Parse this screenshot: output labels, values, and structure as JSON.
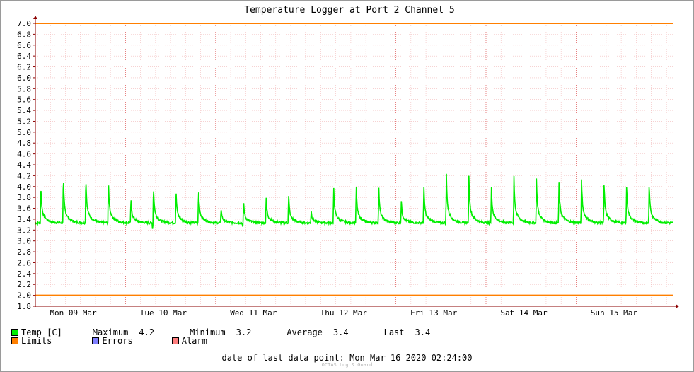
{
  "colors": {
    "temp": "#00ee00",
    "limits": "#ff7f00",
    "errors": "#7f7fff",
    "alarm": "#ff7f7f",
    "grid_minor": "#f2b8b8",
    "grid_major": "#e06060",
    "axis": "#8b0000"
  },
  "chart_data": {
    "type": "line",
    "title": "Temperature Logger at Port 2 Channel 5",
    "xlabel": "",
    "ylabel": "",
    "ylim": [
      1.8,
      7.0
    ],
    "y_ticks": [
      "1.8",
      "2.0",
      "2.2",
      "2.4",
      "2.6",
      "2.8",
      "3.0",
      "3.2",
      "3.4",
      "3.6",
      "3.8",
      "4.0",
      "4.2",
      "4.4",
      "4.6",
      "4.8",
      "5.0",
      "5.2",
      "5.4",
      "5.6",
      "5.8",
      "6.0",
      "6.2",
      "6.4",
      "6.6",
      "6.8",
      "7.0"
    ],
    "x_tick_labels": [
      "Mon 09 Mar",
      "Tue 10 Mar",
      "Wed 11 Mar",
      "Thu 12 Mar",
      "Fri 13 Mar",
      "Sat 14 Mar",
      "Sun 15 Mar"
    ],
    "x_range_days": [
      0,
      7.08
    ],
    "limits": {
      "upper": 7.0,
      "lower": 2.0
    },
    "grid": true,
    "series": [
      {
        "name": "Temp [C]",
        "baseline": 3.33,
        "peaks": [
          [
            0.06,
            4.07
          ],
          [
            0.31,
            4.2
          ],
          [
            0.56,
            4.21
          ],
          [
            0.81,
            4.13
          ],
          [
            1.06,
            3.8
          ],
          [
            1.31,
            4.02
          ],
          [
            1.56,
            3.96
          ],
          [
            1.81,
            3.97
          ],
          [
            2.06,
            3.61
          ],
          [
            2.31,
            3.74
          ],
          [
            2.56,
            3.83
          ],
          [
            2.81,
            3.87
          ],
          [
            3.06,
            3.57
          ],
          [
            3.31,
            4.01
          ],
          [
            3.56,
            4.02
          ],
          [
            3.81,
            4.01
          ],
          [
            4.06,
            3.75
          ],
          [
            4.31,
            4.01
          ],
          [
            4.56,
            4.25
          ],
          [
            4.81,
            4.2
          ],
          [
            5.06,
            4.0
          ],
          [
            5.31,
            4.19
          ],
          [
            5.56,
            4.15
          ],
          [
            5.81,
            4.1
          ],
          [
            6.06,
            4.16
          ],
          [
            6.31,
            4.08
          ],
          [
            6.56,
            4.06
          ],
          [
            6.81,
            4.09
          ]
        ],
        "dips": [
          [
            1.3,
            3.21
          ],
          [
            2.3,
            3.25
          ]
        ]
      }
    ]
  },
  "legend": {
    "temp_label": "Temp [C]",
    "maximum_label": "Maximum",
    "maximum_value": "4.2",
    "minimum_label": "Minimum",
    "minimum_value": "3.2",
    "average_label": "Average",
    "average_value": "3.4",
    "last_label": "Last",
    "last_value": "3.4",
    "limits_label": "Limits",
    "errors_label": "Errors",
    "alarm_label": "Alarm"
  },
  "footer": {
    "last_point_label": "date of last data point:",
    "last_point_value": "Mon Mar 16 2020 02:24:00",
    "watermark": "OCTAS Log & Guard"
  }
}
